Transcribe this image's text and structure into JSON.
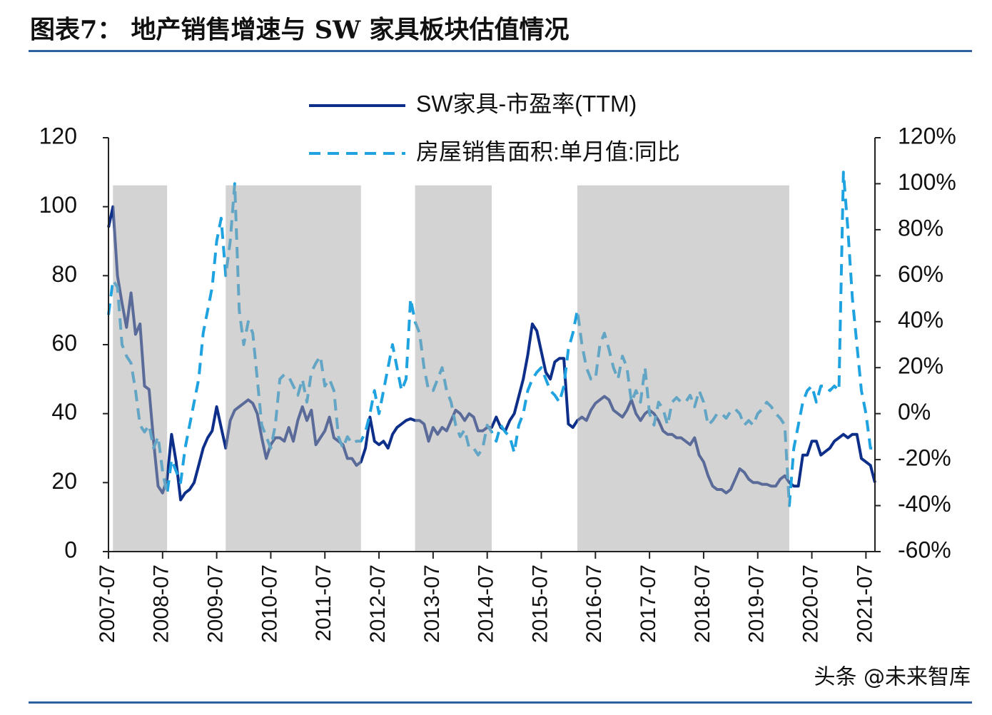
{
  "chart_data": {
    "type": "line",
    "title": "图表7：  地产销售增速与 SW 家具板块估值情况",
    "x": [
      "2007-07",
      "2007-08",
      "2007-09",
      "2007-10",
      "2007-11",
      "2007-12",
      "2008-01",
      "2008-02",
      "2008-03",
      "2008-04",
      "2008-05",
      "2008-06",
      "2008-07",
      "2008-08",
      "2008-09",
      "2008-10",
      "2008-11",
      "2008-12",
      "2009-01",
      "2009-02",
      "2009-03",
      "2009-04",
      "2009-05",
      "2009-06",
      "2009-07",
      "2009-08",
      "2009-09",
      "2009-10",
      "2009-11",
      "2009-12",
      "2010-01",
      "2010-02",
      "2010-03",
      "2010-04",
      "2010-05",
      "2010-06",
      "2010-07",
      "2010-08",
      "2010-09",
      "2010-10",
      "2010-11",
      "2010-12",
      "2011-01",
      "2011-02",
      "2011-03",
      "2011-04",
      "2011-05",
      "2011-06",
      "2011-07",
      "2011-08",
      "2011-09",
      "2011-10",
      "2011-11",
      "2011-12",
      "2012-01",
      "2012-02",
      "2012-03",
      "2012-04",
      "2012-05",
      "2012-06",
      "2012-07",
      "2012-08",
      "2012-09",
      "2012-10",
      "2012-11",
      "2012-12",
      "2013-01",
      "2013-02",
      "2013-03",
      "2013-04",
      "2013-05",
      "2013-06",
      "2013-07",
      "2013-08",
      "2013-09",
      "2013-10",
      "2013-11",
      "2013-12",
      "2014-01",
      "2014-02",
      "2014-03",
      "2014-04",
      "2014-05",
      "2014-06",
      "2014-07",
      "2014-08",
      "2014-09",
      "2014-10",
      "2014-11",
      "2014-12",
      "2015-01",
      "2015-02",
      "2015-03",
      "2015-04",
      "2015-05",
      "2015-06",
      "2015-07",
      "2015-08",
      "2015-09",
      "2015-10",
      "2015-11",
      "2015-12",
      "2016-01",
      "2016-02",
      "2016-03",
      "2016-04",
      "2016-05",
      "2016-06",
      "2016-07",
      "2016-08",
      "2016-09",
      "2016-10",
      "2016-11",
      "2016-12",
      "2017-01",
      "2017-02",
      "2017-03",
      "2017-04",
      "2017-05",
      "2017-06",
      "2017-07",
      "2017-08",
      "2017-09",
      "2017-10",
      "2017-11",
      "2017-12",
      "2018-01",
      "2018-02",
      "2018-03",
      "2018-04",
      "2018-05",
      "2018-06",
      "2018-07",
      "2018-08",
      "2018-09",
      "2018-10",
      "2018-11",
      "2018-12",
      "2019-01",
      "2019-02",
      "2019-03",
      "2019-04",
      "2019-05",
      "2019-06",
      "2019-07",
      "2019-08",
      "2019-09",
      "2019-10",
      "2019-11",
      "2019-12",
      "2020-01",
      "2020-02",
      "2020-03",
      "2020-04",
      "2020-05",
      "2020-06",
      "2020-07",
      "2020-08",
      "2020-09",
      "2020-10",
      "2020-11",
      "2020-12",
      "2021-01",
      "2021-02",
      "2021-03",
      "2021-04",
      "2021-05",
      "2021-06",
      "2021-07",
      "2021-08",
      "2021-09"
    ],
    "xlim": [
      "2007-07",
      "2021-09"
    ],
    "xticks": [
      "2007-07",
      "2008-07",
      "2009-07",
      "2010-07",
      "2011-07",
      "2012-07",
      "2013-07",
      "2014-07",
      "2015-07",
      "2016-07",
      "2017-07",
      "2018-07",
      "2019-07",
      "2020-07",
      "2021-07"
    ],
    "ylim": [
      0,
      120
    ],
    "yticks": [
      0,
      20,
      40,
      60,
      80,
      100,
      120
    ],
    "y2lim": [
      -60,
      120
    ],
    "y2ticks": [
      {
        "value": -60,
        "label": "-60%"
      },
      {
        "value": -40,
        "label": "-40%"
      },
      {
        "value": -20,
        "label": "-20%"
      },
      {
        "value": 0,
        "label": "0%"
      },
      {
        "value": 20,
        "label": "20%"
      },
      {
        "value": 40,
        "label": "40%"
      },
      {
        "value": 60,
        "label": "60%"
      },
      {
        "value": 80,
        "label": "80%"
      },
      {
        "value": 100,
        "label": "100%"
      },
      {
        "value": 120,
        "label": "120%"
      }
    ],
    "series": [
      {
        "name": "SW家具-市盈率(TTM)",
        "color": "#0d2f8a",
        "values": [
          94,
          100,
          80,
          72,
          65,
          75,
          63,
          66,
          48,
          47,
          32,
          19,
          17,
          21,
          34,
          26,
          15,
          17,
          18,
          20,
          25,
          30,
          33,
          35,
          42,
          36,
          30,
          38,
          41,
          42,
          43,
          44,
          43,
          40,
          33,
          27,
          31,
          33,
          33,
          32,
          36,
          32,
          38,
          42,
          38,
          41,
          31,
          33,
          35,
          39,
          33,
          32,
          31,
          27,
          27,
          25,
          26,
          30,
          39,
          32,
          31,
          32,
          30,
          34,
          36,
          37,
          38,
          38.5,
          38,
          38,
          37,
          32,
          36,
          34,
          36,
          35,
          38,
          41,
          40,
          38,
          40,
          39,
          35,
          35,
          36,
          36,
          39,
          36,
          35,
          38,
          40,
          45,
          50,
          57,
          66,
          64,
          58,
          52,
          50,
          55,
          56,
          56,
          37,
          36,
          38,
          39,
          38,
          41,
          43,
          44,
          45,
          44,
          41,
          40,
          39,
          41,
          44,
          40,
          38,
          40,
          41,
          40,
          38,
          35,
          34,
          34,
          33,
          33,
          32,
          31,
          33,
          28,
          26,
          22,
          19,
          18,
          18,
          17,
          18,
          21,
          24,
          23,
          21,
          20,
          20,
          19.5,
          19.5,
          19,
          19,
          21,
          22,
          20,
          19,
          19,
          28,
          28,
          32,
          32,
          28,
          29,
          30,
          32,
          33,
          34,
          33,
          34,
          34,
          27,
          26,
          25,
          20
        ]
      },
      {
        "name": "房屋销售面积:单月值:同比",
        "color": "#1fa3e0",
        "axis": "y2",
        "dashed": true,
        "values": [
          43,
          58,
          55,
          30,
          25,
          22,
          10,
          -5,
          -8,
          -5,
          -15,
          -10,
          -25,
          -35,
          -20,
          -25,
          -30,
          -15,
          -5,
          5,
          15,
          35,
          45,
          55,
          75,
          85,
          60,
          75,
          100,
          45,
          30,
          40,
          35,
          15,
          -5,
          -10,
          -15,
          -5,
          15,
          17,
          16,
          12,
          8,
          15,
          5,
          18,
          22,
          25,
          12,
          15,
          10,
          -10,
          -15,
          -10,
          -13,
          -12,
          -12,
          -8,
          0,
          10,
          0,
          10,
          20,
          30,
          20,
          10,
          15,
          50,
          40,
          35,
          20,
          10,
          10,
          15,
          20,
          10,
          5,
          -5,
          -10,
          -7,
          -15,
          -15,
          -18,
          -15,
          -5,
          -8,
          -12,
          -5,
          -8,
          -10,
          -17,
          -5,
          0,
          10,
          15,
          18,
          20,
          15,
          10,
          8,
          5,
          12,
          28,
          35,
          45,
          30,
          20,
          15,
          15,
          30,
          35,
          28,
          20,
          15,
          25,
          20,
          5,
          10,
          5,
          20,
          0,
          -5,
          5,
          2,
          -5,
          5,
          7,
          5,
          5,
          8,
          3,
          10,
          5,
          -5,
          -3,
          0,
          0,
          -2,
          1,
          2,
          0,
          -5,
          -3,
          -5,
          0,
          2,
          5,
          3,
          0,
          -2,
          -5,
          -40,
          -15,
          -5,
          5,
          10,
          12,
          5,
          12,
          12,
          10,
          12,
          10,
          105,
          80,
          50,
          30,
          10,
          0,
          -15,
          -15
        ]
      }
    ],
    "shaded_ranges": [
      [
        "2007-08",
        "2008-08"
      ],
      [
        "2009-09",
        "2012-03"
      ],
      [
        "2013-03",
        "2014-08"
      ],
      [
        "2016-03",
        "2020-02"
      ]
    ],
    "shade_color": "#a8a8a8",
    "watermark": "头条 @未来智库"
  }
}
